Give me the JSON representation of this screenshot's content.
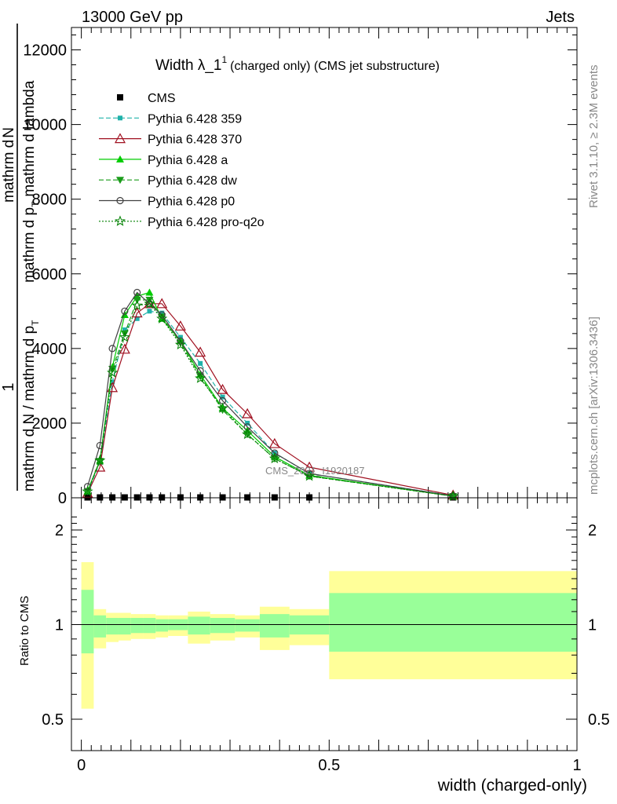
{
  "header": {
    "left": "13000 GeV pp",
    "right": "Jets"
  },
  "side_labels": {
    "rivet": "Rivet 3.1.10, ≥ 2.3M events",
    "mcplots": "mcplots.cern.ch [arXiv:1306.3436]"
  },
  "plot_title": {
    "main": "Width λ_1",
    "sup": "1",
    "sub": "(charged only) (CMS jet substructure)"
  },
  "watermark": "CMS_2021_I1920187",
  "y_axis_label": {
    "numerator_top": "mathrm d",
    "numerator_n": "N",
    "frac_one": "1",
    "denominator": "mathrm d N / mathrm d p",
    "denominator_t": "T",
    "upper_part": "mathrm d p",
    "upper_t": "T",
    "upper_rest": "mathrm d lambda"
  },
  "ratio_y_label": "Ratio to CMS",
  "x_axis_label": "width (charged-only)",
  "chart_data": [
    {
      "type": "line",
      "panel": "main",
      "xlim": [
        -0.02,
        1.0
      ],
      "ylim": [
        0,
        12600
      ],
      "x_ticks": [
        "0",
        "0.5",
        "1"
      ],
      "y_ticks": [
        "0",
        "2000",
        "4000",
        "6000",
        "8000",
        "10000",
        "12000"
      ],
      "data_x": [
        0.0125,
        0.0375,
        0.0625,
        0.0875,
        0.1125,
        0.1375,
        0.1625,
        0.2,
        0.24,
        0.285,
        0.335,
        0.39,
        0.46,
        0.75
      ],
      "series": [
        {
          "name": "CMS",
          "color": "#000000",
          "marker": "square",
          "line": "none",
          "values": [
            10,
            10,
            10,
            10,
            10,
            10,
            10,
            10,
            10,
            10,
            10,
            10,
            10,
            10
          ]
        },
        {
          "name": "Pythia 6.428 359",
          "color": "#20b2aa",
          "marker": "square-small",
          "line": "dashed",
          "values": [
            150,
            950,
            3100,
            4500,
            4800,
            5000,
            4950,
            4300,
            3600,
            2700,
            2000,
            1200,
            650,
            55
          ]
        },
        {
          "name": "Pythia 6.428 370",
          "color": "#a01020",
          "marker": "triangle-open",
          "line": "solid",
          "values": [
            120,
            820,
            2950,
            3980,
            4950,
            5200,
            5200,
            4600,
            3900,
            2900,
            2250,
            1450,
            820,
            70
          ]
        },
        {
          "name": "Pythia 6.428 a",
          "color": "#00cc00",
          "marker": "triangle",
          "line": "solid",
          "values": [
            180,
            1000,
            3500,
            4900,
            5400,
            5500,
            4800,
            4200,
            3300,
            2400,
            1800,
            1100,
            600,
            45
          ]
        },
        {
          "name": "Pythia 6.428 dw",
          "color": "#1a9c1a",
          "marker": "triangle-down",
          "line": "dashed",
          "values": [
            170,
            980,
            3450,
            4400,
            5300,
            5300,
            4850,
            4150,
            3250,
            2350,
            1700,
            1050,
            580,
            42
          ]
        },
        {
          "name": "Pythia 6.428 p0",
          "color": "#404040",
          "marker": "circle-open",
          "line": "solid",
          "values": [
            300,
            1400,
            4000,
            5000,
            5500,
            5200,
            4900,
            4200,
            3400,
            2600,
            1900,
            1200,
            650,
            50
          ]
        },
        {
          "name": "Pythia 6.428 pro-q2o",
          "color": "#008000",
          "marker": "star-open",
          "line": "dotted",
          "values": [
            170,
            1000,
            3350,
            4300,
            5150,
            5200,
            4800,
            4100,
            3200,
            2400,
            1700,
            1050,
            580,
            45
          ]
        }
      ],
      "legend": "top-left"
    },
    {
      "type": "area",
      "panel": "ratio",
      "xlabel": "width (charged-only)",
      "ylabel": "Ratio to CMS",
      "xlim": [
        -0.02,
        1.0
      ],
      "ylim": [
        0.5,
        2.3
      ],
      "y_ticks": [
        "0.5",
        "1",
        "2"
      ],
      "bins": [
        {
          "x": [
            0.0,
            0.025
          ],
          "yellow": [
            0.54,
            1.58
          ],
          "green": [
            0.81,
            1.29
          ]
        },
        {
          "x": [
            0.025,
            0.05
          ],
          "yellow": [
            0.84,
            1.12
          ],
          "green": [
            0.91,
            1.07
          ]
        },
        {
          "x": [
            0.05,
            0.075
          ],
          "yellow": [
            0.88,
            1.09
          ],
          "green": [
            0.93,
            1.05
          ]
        },
        {
          "x": [
            0.075,
            0.1
          ],
          "yellow": [
            0.89,
            1.09
          ],
          "green": [
            0.93,
            1.05
          ]
        },
        {
          "x": [
            0.1,
            0.125
          ],
          "yellow": [
            0.9,
            1.08
          ],
          "green": [
            0.94,
            1.05
          ]
        },
        {
          "x": [
            0.125,
            0.15
          ],
          "yellow": [
            0.9,
            1.08
          ],
          "green": [
            0.94,
            1.05
          ]
        },
        {
          "x": [
            0.15,
            0.175
          ],
          "yellow": [
            0.91,
            1.07
          ],
          "green": [
            0.95,
            1.04
          ]
        },
        {
          "x": [
            0.175,
            0.215
          ],
          "yellow": [
            0.92,
            1.07
          ],
          "green": [
            0.96,
            1.04
          ]
        },
        {
          "x": [
            0.215,
            0.26
          ],
          "yellow": [
            0.87,
            1.1
          ],
          "green": [
            0.93,
            1.06
          ]
        },
        {
          "x": [
            0.26,
            0.31
          ],
          "yellow": [
            0.89,
            1.08
          ],
          "green": [
            0.94,
            1.05
          ]
        },
        {
          "x": [
            0.31,
            0.36
          ],
          "yellow": [
            0.91,
            1.07
          ],
          "green": [
            0.95,
            1.04
          ]
        },
        {
          "x": [
            0.36,
            0.42
          ],
          "yellow": [
            0.83,
            1.14
          ],
          "green": [
            0.91,
            1.08
          ]
        },
        {
          "x": [
            0.42,
            0.5
          ],
          "yellow": [
            0.86,
            1.12
          ],
          "green": [
            0.93,
            1.07
          ]
        },
        {
          "x": [
            0.5,
            1.0
          ],
          "yellow": [
            0.67,
            1.48
          ],
          "green": [
            0.82,
            1.26
          ]
        }
      ],
      "reference_line": 1
    }
  ]
}
